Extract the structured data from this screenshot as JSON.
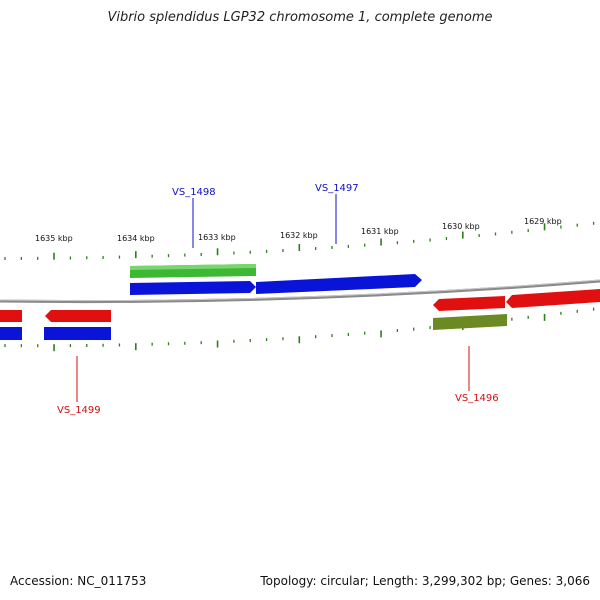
{
  "title": "Vibrio splendidus LGP32 chromosome 1, complete genome",
  "footer": {
    "accession": "Accession: NC_011753",
    "summary": "Topology: circular; Length: 3,299,302 bp; Genes: 3,066"
  },
  "colors": {
    "backbone": "#8a8a8a",
    "tick": "#2e7d1e",
    "cds_forward": "#0a14d8",
    "cds_reverse": "#e01010",
    "gene_green": "#3cb832",
    "gene_olive": "#6b8a23",
    "label_blue": "#1010c8",
    "label_red": "#d01010"
  },
  "kbp_labels": [
    "1635 kbp",
    "1634 kbp",
    "1633 kbp",
    "1632 kbp",
    "1631 kbp",
    "1630 kbp",
    "1629 kbp"
  ],
  "gene_labels": [
    "VS_1498",
    "VS_1497",
    "VS_1499",
    "VS_1496"
  ]
}
